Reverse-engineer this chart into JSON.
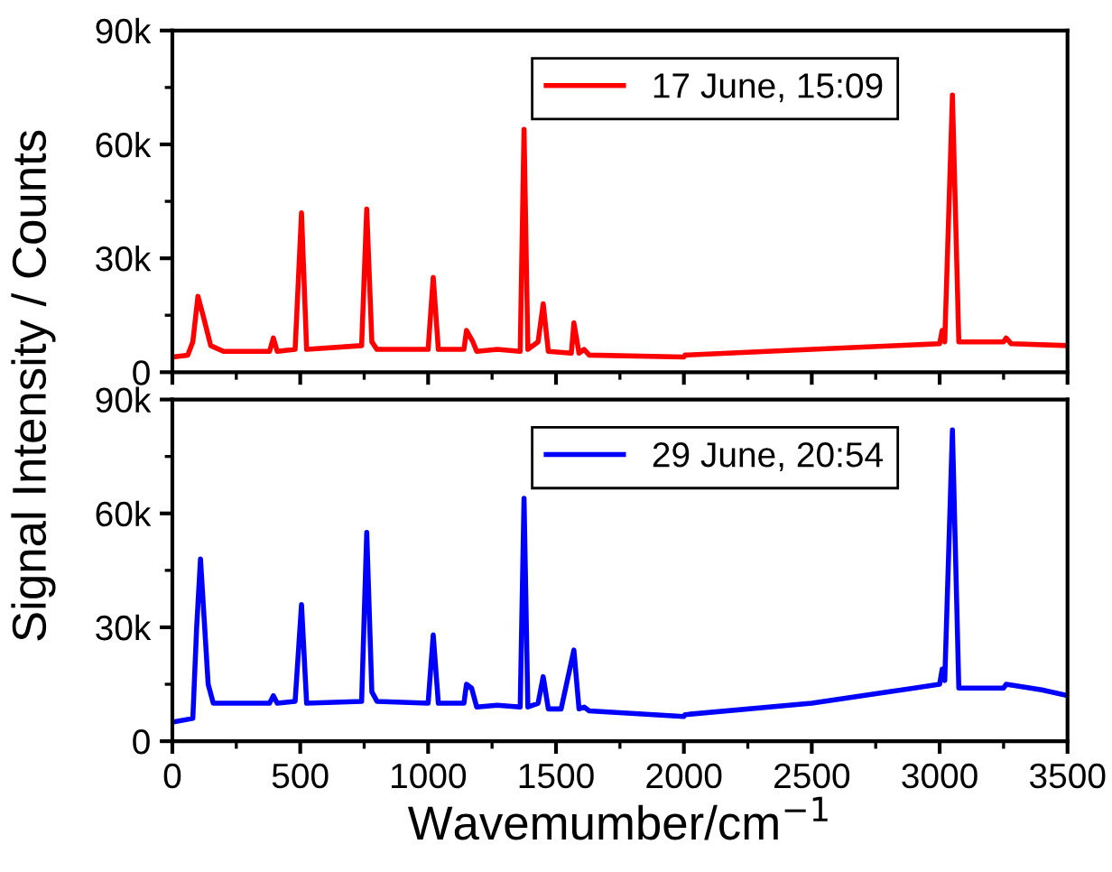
{
  "chart_data": [
    {
      "type": "line",
      "ylabel": "Signal Intensity / Counts",
      "legend": "top right",
      "tick_labels": "y",
      "xlim": [
        0,
        3500
      ],
      "xticks": [
        0,
        500,
        1000,
        1500,
        2000,
        2500,
        3000,
        3500
      ],
      "ylim": [
        0,
        90000
      ],
      "yticks": [
        0,
        {
          "value": 30000,
          "label": "30k"
        },
        {
          "value": 60000,
          "label": "60k"
        },
        {
          "value": 90000,
          "label": "90k"
        }
      ],
      "series": [
        {
          "name": "17 June, 15:09",
          "color": "#ff0000",
          "x": [
            0,
            60,
            80,
            100,
            120,
            150,
            200,
            380,
            395,
            410,
            480,
            505,
            525,
            740,
            760,
            780,
            800,
            1000,
            1020,
            1040,
            1140,
            1150,
            1175,
            1190,
            1270,
            1360,
            1375,
            1390,
            1430,
            1450,
            1470,
            1560,
            1570,
            1590,
            1610,
            1630,
            2000,
            2005,
            2500,
            3000,
            3010,
            3020,
            3050,
            3075,
            3250,
            3260,
            3280,
            3500
          ],
          "values": [
            4000,
            4500,
            8000,
            20000,
            15000,
            7000,
            5500,
            5500,
            9000,
            5500,
            6000,
            42000,
            6000,
            7000,
            43000,
            8000,
            6000,
            6000,
            25000,
            6000,
            6000,
            11000,
            8000,
            5500,
            6000,
            5500,
            64000,
            6000,
            8000,
            18000,
            5500,
            5000,
            13000,
            5000,
            6000,
            4500,
            4000,
            4500,
            6000,
            7500,
            11000,
            8000,
            73000,
            8000,
            8000,
            9000,
            7500,
            7000
          ]
        }
      ]
    },
    {
      "type": "line",
      "xlabel": "Wavemumber/cm$^{−1}$",
      "legend": "top right",
      "xlim": [
        0,
        3500
      ],
      "xticks": [
        0,
        500,
        1000,
        1500,
        2000,
        2500,
        3000,
        3500
      ],
      "ylim": [
        0,
        90000
      ],
      "yticks": [
        0,
        {
          "value": 30000,
          "label": "30k"
        },
        {
          "value": 60000,
          "label": "60k"
        },
        {
          "value": 90000,
          "label": "90k"
        }
      ],
      "series": [
        {
          "name": "29 June, 20:54",
          "color": "#0000ff",
          "x": [
            0,
            80,
            95,
            110,
            140,
            160,
            380,
            395,
            410,
            480,
            505,
            525,
            740,
            760,
            780,
            800,
            1000,
            1020,
            1040,
            1140,
            1150,
            1170,
            1190,
            1270,
            1360,
            1375,
            1390,
            1430,
            1450,
            1470,
            1520,
            1570,
            1590,
            1610,
            1630,
            2000,
            2005,
            2500,
            3000,
            3010,
            3020,
            3050,
            3075,
            3250,
            3260,
            3400,
            3500
          ],
          "values": [
            5000,
            6000,
            30000,
            48000,
            15000,
            10000,
            10000,
            12000,
            10000,
            10500,
            36000,
            10000,
            10500,
            55000,
            13000,
            10500,
            10000,
            28000,
            10000,
            10000,
            15000,
            14000,
            9000,
            9500,
            9000,
            64000,
            9000,
            10000,
            17000,
            8500,
            8500,
            24000,
            8500,
            9000,
            8000,
            6500,
            7000,
            10000,
            15000,
            19000,
            16000,
            82000,
            14000,
            14000,
            15000,
            13500,
            12000
          ]
        }
      ]
    }
  ]
}
